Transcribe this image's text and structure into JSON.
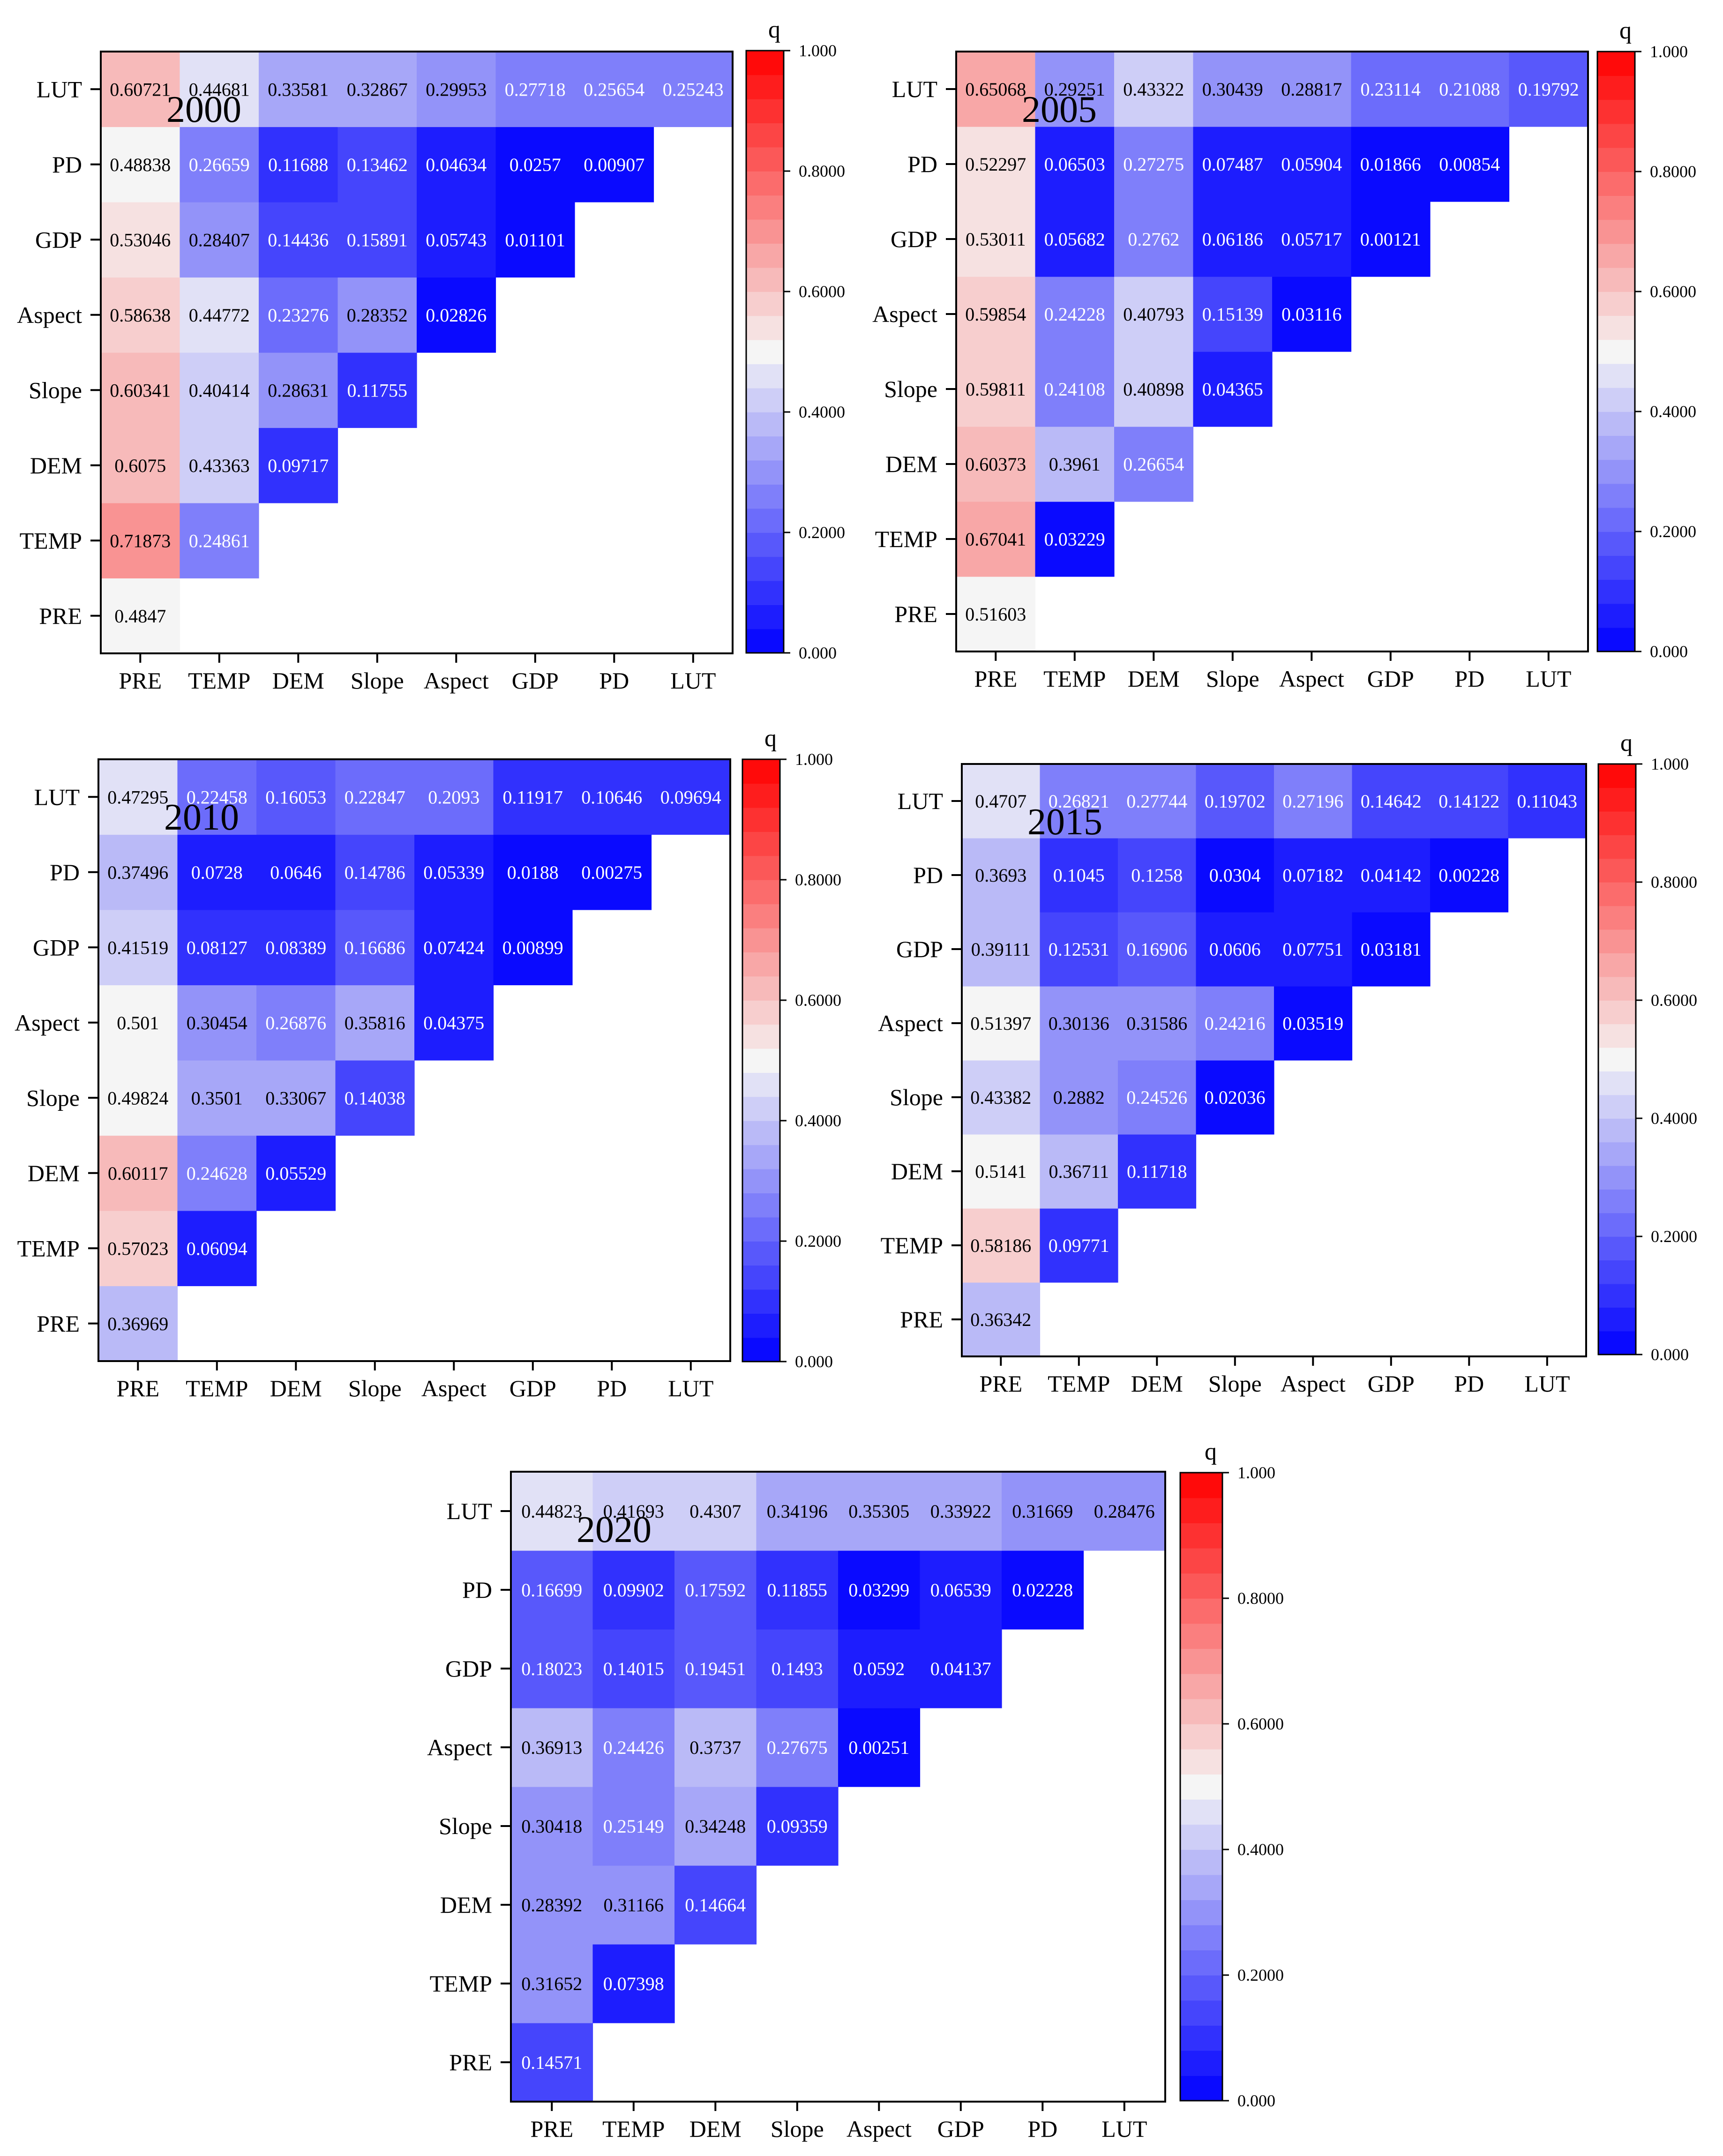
{
  "chart_data": [
    {
      "type": "heatmap",
      "year_label": "2000",
      "categories": [
        "PRE",
        "TEMP",
        "DEM",
        "Slope",
        "Aspect",
        "GDP",
        "PD",
        "LUT"
      ],
      "matrix": [
        [
          0.4847
        ],
        [
          0.71873,
          0.24861
        ],
        [
          0.6075,
          0.43363,
          0.09717
        ],
        [
          0.60341,
          0.40414,
          0.28631,
          0.11755
        ],
        [
          0.58638,
          0.44772,
          0.23276,
          0.28352,
          0.02826
        ],
        [
          0.53046,
          0.28407,
          0.14436,
          0.15891,
          0.05743,
          0.01101
        ],
        [
          0.48838,
          0.26659,
          0.11688,
          0.13462,
          0.04634,
          0.0257,
          0.00907
        ],
        [
          0.60721,
          0.44681,
          0.33581,
          0.32867,
          0.29953,
          0.27718,
          0.25654,
          0.25243
        ]
      ],
      "matrix_labels": [
        [
          "0.4847"
        ],
        [
          "0.71873",
          "0.24861"
        ],
        [
          "0.6075",
          "0.43363",
          "0.09717"
        ],
        [
          "0.60341",
          "0.40414",
          "0.28631",
          "0.11755"
        ],
        [
          "0.58638",
          "0.44772",
          "0.23276",
          "0.28352",
          "0.02826"
        ],
        [
          "0.53046",
          "0.28407",
          "0.14436",
          "0.15891",
          "0.05743",
          "0.01101"
        ],
        [
          "0.48838",
          "0.26659",
          "0.11688",
          "0.13462",
          "0.04634",
          "0.0257",
          "0.00907"
        ],
        [
          "0.60721",
          "0.44681",
          "0.33581",
          "0.32867",
          "0.29953",
          "0.27718",
          "0.25654",
          "0.25243"
        ]
      ],
      "colorbar": {
        "title": "q",
        "range": [
          0,
          1
        ],
        "ticks": [
          "0.000",
          "0.2000",
          "0.4000",
          "0.6000",
          "0.8000",
          "1.000"
        ]
      }
    },
    {
      "type": "heatmap",
      "year_label": "2005",
      "categories": [
        "PRE",
        "TEMP",
        "DEM",
        "Slope",
        "Aspect",
        "GDP",
        "PD",
        "LUT"
      ],
      "matrix": [
        [
          0.51603
        ],
        [
          0.67041,
          0.03229
        ],
        [
          0.60373,
          0.3961,
          0.26654
        ],
        [
          0.59811,
          0.24108,
          0.40898,
          0.04365
        ],
        [
          0.59854,
          0.24228,
          0.40793,
          0.15139,
          0.03116
        ],
        [
          0.53011,
          0.05682,
          0.2762,
          0.06186,
          0.05717,
          0.00121
        ],
        [
          0.52297,
          0.06503,
          0.27275,
          0.07487,
          0.05904,
          0.01866,
          0.00854
        ],
        [
          0.65068,
          0.29251,
          0.43322,
          0.30439,
          0.28817,
          0.23114,
          0.21088,
          0.19792
        ]
      ],
      "matrix_labels": [
        [
          "0.51603"
        ],
        [
          "0.67041",
          "0.03229"
        ],
        [
          "0.60373",
          "0.3961",
          "0.26654"
        ],
        [
          "0.59811",
          "0.24108",
          "0.40898",
          "0.04365"
        ],
        [
          "0.59854",
          "0.24228",
          "0.40793",
          "0.15139",
          "0.03116"
        ],
        [
          "0.53011",
          "0.05682",
          "0.2762",
          "0.06186",
          "0.05717",
          "0.00121"
        ],
        [
          "0.52297",
          "0.06503",
          "0.27275",
          "0.07487",
          "0.05904",
          "0.01866",
          "0.00854"
        ],
        [
          "0.65068",
          "0.29251",
          "0.43322",
          "0.30439",
          "0.28817",
          "0.23114",
          "0.21088",
          "0.19792"
        ]
      ],
      "colorbar": {
        "title": "q",
        "range": [
          0,
          1
        ],
        "ticks": [
          "0.000",
          "0.2000",
          "0.4000",
          "0.6000",
          "0.8000",
          "1.000"
        ]
      }
    },
    {
      "type": "heatmap",
      "year_label": "2010",
      "categories": [
        "PRE",
        "TEMP",
        "DEM",
        "Slope",
        "Aspect",
        "GDP",
        "PD",
        "LUT"
      ],
      "matrix": [
        [
          0.36969
        ],
        [
          0.57023,
          0.06094
        ],
        [
          0.60117,
          0.24628,
          0.05529
        ],
        [
          0.49824,
          0.3501,
          0.33067,
          0.14038
        ],
        [
          0.501,
          0.30454,
          0.26876,
          0.35816,
          0.04375
        ],
        [
          0.41519,
          0.08127,
          0.08389,
          0.16686,
          0.07424,
          0.00899
        ],
        [
          0.37496,
          0.0728,
          0.0646,
          0.14786,
          0.05339,
          0.0188,
          0.00275
        ],
        [
          0.47295,
          0.22458,
          0.16053,
          0.22847,
          0.2093,
          0.11917,
          0.10646,
          0.09694
        ]
      ],
      "matrix_labels": [
        [
          "0.36969"
        ],
        [
          "0.57023",
          "0.06094"
        ],
        [
          "0.60117",
          "0.24628",
          "0.05529"
        ],
        [
          "0.49824",
          "0.3501",
          "0.33067",
          "0.14038"
        ],
        [
          "0.501",
          "0.30454",
          "0.26876",
          "0.35816",
          "0.04375"
        ],
        [
          "0.41519",
          "0.08127",
          "0.08389",
          "0.16686",
          "0.07424",
          "0.00899"
        ],
        [
          "0.37496",
          "0.0728",
          "0.0646",
          "0.14786",
          "0.05339",
          "0.0188",
          "0.00275"
        ],
        [
          "0.47295",
          "0.22458",
          "0.16053",
          "0.22847",
          "0.2093",
          "0.11917",
          "0.10646",
          "0.09694"
        ]
      ],
      "colorbar": {
        "title": "q",
        "range": [
          0,
          1
        ],
        "ticks": [
          "0.000",
          "0.2000",
          "0.4000",
          "0.6000",
          "0.8000",
          "1.000"
        ]
      }
    },
    {
      "type": "heatmap",
      "year_label": "2015",
      "categories": [
        "PRE",
        "TEMP",
        "DEM",
        "Slope",
        "Aspect",
        "GDP",
        "PD",
        "LUT"
      ],
      "matrix": [
        [
          0.36342
        ],
        [
          0.58186,
          0.09771
        ],
        [
          0.5141,
          0.36711,
          0.11718
        ],
        [
          0.43382,
          0.2882,
          0.24526,
          0.02036
        ],
        [
          0.51397,
          0.30136,
          0.31586,
          0.24216,
          0.03519
        ],
        [
          0.39111,
          0.12531,
          0.16906,
          0.0606,
          0.07751,
          0.03181
        ],
        [
          0.3693,
          0.1045,
          0.1258,
          0.0304,
          0.07182,
          0.04142,
          0.00228
        ],
        [
          0.4707,
          0.26821,
          0.27744,
          0.19702,
          0.27196,
          0.14642,
          0.14122,
          0.11043
        ]
      ],
      "matrix_labels": [
        [
          "0.36342"
        ],
        [
          "0.58186",
          "0.09771"
        ],
        [
          "0.5141",
          "0.36711",
          "0.11718"
        ],
        [
          "0.43382",
          "0.2882",
          "0.24526",
          "0.02036"
        ],
        [
          "0.51397",
          "0.30136",
          "0.31586",
          "0.24216",
          "0.03519"
        ],
        [
          "0.39111",
          "0.12531",
          "0.16906",
          "0.0606",
          "0.07751",
          "0.03181"
        ],
        [
          "0.3693",
          "0.1045",
          "0.1258",
          "0.0304",
          "0.07182",
          "0.04142",
          "0.00228"
        ],
        [
          "0.4707",
          "0.26821",
          "0.27744",
          "0.19702",
          "0.27196",
          "0.14642",
          "0.14122",
          "0.11043"
        ]
      ],
      "colorbar": {
        "title": "q",
        "range": [
          0,
          1
        ],
        "ticks": [
          "0.000",
          "0.2000",
          "0.4000",
          "0.6000",
          "0.8000",
          "1.000"
        ]
      }
    },
    {
      "type": "heatmap",
      "year_label": "2020",
      "categories": [
        "PRE",
        "TEMP",
        "DEM",
        "Slope",
        "Aspect",
        "GDP",
        "PD",
        "LUT"
      ],
      "matrix": [
        [
          0.14571
        ],
        [
          0.31652,
          0.07398
        ],
        [
          0.28392,
          0.31166,
          0.14664
        ],
        [
          0.30418,
          0.25149,
          0.34248,
          0.09359
        ],
        [
          0.36913,
          0.24426,
          0.3737,
          0.27675,
          0.00251
        ],
        [
          0.18023,
          0.14015,
          0.19451,
          0.1493,
          0.0592,
          0.04137
        ],
        [
          0.16699,
          0.09902,
          0.17592,
          0.11855,
          0.03299,
          0.06539,
          0.02228
        ],
        [
          0.44823,
          0.41693,
          0.4307,
          0.34196,
          0.35305,
          0.33922,
          0.31669,
          0.28476
        ]
      ],
      "matrix_labels": [
        [
          "0.14571"
        ],
        [
          "0.31652",
          "0.07398"
        ],
        [
          "0.28392",
          "0.31166",
          "0.14664"
        ],
        [
          "0.30418",
          "0.25149",
          "0.34248",
          "0.09359"
        ],
        [
          "0.36913",
          "0.24426",
          "0.3737",
          "0.27675",
          "0.00251"
        ],
        [
          "0.18023",
          "0.14015",
          "0.19451",
          "0.1493",
          "0.0592",
          "0.04137"
        ],
        [
          "0.16699",
          "0.09902",
          "0.17592",
          "0.11855",
          "0.03299",
          "0.06539",
          "0.02228"
        ],
        [
          "0.44823",
          "0.41693",
          "0.4307",
          "0.34196",
          "0.35305",
          "0.33922",
          "0.31669",
          "0.28476"
        ]
      ],
      "colorbar": {
        "title": "q",
        "range": [
          0,
          1
        ],
        "ticks": [
          "0.000",
          "0.2000",
          "0.4000",
          "0.6000",
          "0.8000",
          "1.000"
        ]
      }
    }
  ],
  "colors": {
    "low": "#0000ff",
    "mid": "#f5f5f5",
    "high": "#ff0000",
    "frame": "#000000",
    "text_dark": "#000000",
    "text_light": "#ffffff"
  }
}
